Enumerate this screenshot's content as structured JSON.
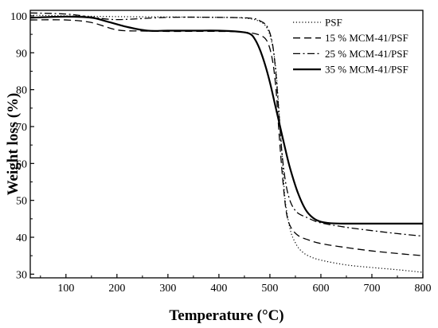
{
  "chart_data": {
    "type": "line",
    "title": "",
    "xlabel": "Temperature (°C)",
    "ylabel": "Weight loss (%)",
    "xlim": [
      30,
      800
    ],
    "ylim": [
      29,
      101.5
    ],
    "xticks": [
      100,
      200,
      300,
      400,
      500,
      600,
      700,
      800
    ],
    "yticks": [
      30,
      40,
      50,
      60,
      70,
      80,
      90,
      100
    ],
    "grid": false,
    "legend_position": "top-right",
    "series": [
      {
        "name": "PSF",
        "style": "dotted",
        "x": [
          30,
          100,
          200,
          300,
          400,
          450,
          480,
          495,
          505,
          512,
          518,
          525,
          530,
          540,
          550,
          560,
          575,
          600,
          650,
          700,
          750,
          800
        ],
        "y": [
          100.2,
          100,
          99.8,
          99.7,
          99.6,
          99.4,
          98.5,
          96.5,
          92,
          85,
          74,
          60,
          50,
          42,
          38.5,
          36.5,
          35,
          33.8,
          32.5,
          31.8,
          31.2,
          30.5
        ]
      },
      {
        "name": "15 % MCM-41/PSF",
        "style": "dashed",
        "x": [
          30,
          100,
          150,
          200,
          250,
          300,
          400,
          450,
          480,
          495,
          505,
          512,
          518,
          525,
          532,
          540,
          555,
          575,
          600,
          650,
          700,
          750,
          800
        ],
        "y": [
          98.9,
          98.9,
          98.2,
          96.2,
          95.9,
          95.8,
          95.8,
          95.6,
          94.8,
          93,
          88,
          80,
          68,
          56,
          47,
          43,
          40.5,
          39.3,
          38.3,
          37.2,
          36.3,
          35.6,
          35
        ]
      },
      {
        "name": "25 % MCM-41/PSF",
        "style": "dashdot",
        "x": [
          30,
          100,
          150,
          200,
          300,
          400,
          460,
          480,
          495,
          505,
          512,
          518,
          525,
          535,
          550,
          575,
          600,
          650,
          700,
          750,
          800
        ],
        "y": [
          100.8,
          100.5,
          99.7,
          99,
          99.6,
          99.6,
          99.4,
          98.7,
          97,
          92.5,
          84,
          73,
          61,
          52,
          47.2,
          45.2,
          43.9,
          42.7,
          41.8,
          41,
          40.3
        ]
      },
      {
        "name": "35 % MCM-41/PSF",
        "style": "solid",
        "x": [
          30,
          100,
          150,
          180,
          220,
          260,
          300,
          350,
          400,
          440,
          460,
          470,
          480,
          490,
          500,
          510,
          520,
          530,
          540,
          555,
          570,
          585,
          600,
          620,
          650,
          700,
          800
        ],
        "y": [
          99.5,
          99.8,
          99.5,
          98.5,
          97,
          96,
          96,
          96,
          96,
          95.7,
          95.2,
          93.8,
          91,
          87,
          82,
          76,
          70,
          64,
          58.5,
          52,
          47.5,
          45.2,
          44.2,
          43.8,
          43.7,
          43.7,
          43.7
        ]
      }
    ]
  }
}
